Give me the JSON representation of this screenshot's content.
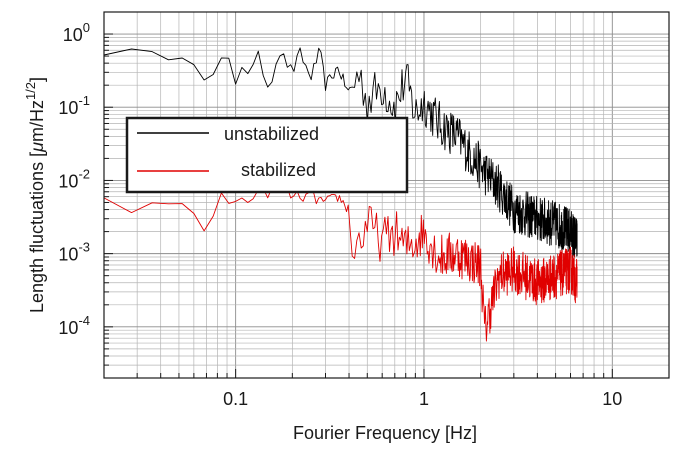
{
  "chart_data": {
    "type": "line",
    "title": "",
    "xlabel": "Fourier Frequency [Hz]",
    "ylabel_parts": [
      "Length fluctuations [",
      "μ",
      "m/Hz",
      "1/2",
      "]"
    ],
    "x_scale": "log",
    "y_scale": "log",
    "xlim": [
      0.02,
      20
    ],
    "ylim": [
      2e-05,
      2
    ],
    "grid": true,
    "legend_position": "upper-left, inside plot",
    "x_ticks": [
      {
        "value": 0.1,
        "label": "0.1"
      },
      {
        "value": 1,
        "label": "1"
      },
      {
        "value": 10,
        "label": "10"
      }
    ],
    "y_ticks": [
      {
        "value": 1,
        "base": "10",
        "exp": "0"
      },
      {
        "value": 0.1,
        "base": "10",
        "exp": "-1"
      },
      {
        "value": 0.01,
        "base": "10",
        "exp": "-2"
      },
      {
        "value": 0.001,
        "base": "10",
        "exp": "-3"
      },
      {
        "value": 0.0001,
        "base": "10",
        "exp": "-4"
      }
    ],
    "series": [
      {
        "name": "unstabilized",
        "color": "#000000",
        "points": [
          [
            0.02,
            0.6
          ],
          [
            0.025,
            0.65
          ],
          [
            0.03,
            0.5
          ],
          [
            0.04,
            0.48
          ],
          [
            0.05,
            0.6
          ],
          [
            0.06,
            0.45
          ],
          [
            0.07,
            0.18
          ],
          [
            0.08,
            0.35
          ],
          [
            0.09,
            0.5
          ],
          [
            0.1,
            0.22
          ],
          [
            0.11,
            0.45
          ],
          [
            0.12,
            0.25
          ],
          [
            0.13,
            0.55
          ],
          [
            0.15,
            0.18
          ],
          [
            0.17,
            0.6
          ],
          [
            0.2,
            0.3
          ],
          [
            0.22,
            0.55
          ],
          [
            0.25,
            0.25
          ],
          [
            0.28,
            0.6
          ],
          [
            0.3,
            0.2
          ],
          [
            0.35,
            0.35
          ],
          [
            0.4,
            0.15
          ],
          [
            0.45,
            0.3
          ],
          [
            0.5,
            0.12
          ],
          [
            0.6,
            0.2
          ],
          [
            0.7,
            0.1
          ],
          [
            0.8,
            0.25
          ],
          [
            0.9,
            0.08
          ],
          [
            1,
            0.12
          ],
          [
            1.2,
            0.06
          ],
          [
            1.5,
            0.04
          ],
          [
            2,
            0.015
          ],
          [
            2.5,
            0.008
          ],
          [
            3,
            0.004
          ],
          [
            4,
            0.003
          ],
          [
            5,
            0.0025
          ],
          [
            6,
            0.002
          ],
          [
            6.5,
            0.0015
          ]
        ]
      },
      {
        "name": "stabilized",
        "color": "#e00000",
        "points": [
          [
            0.02,
            0.005
          ],
          [
            0.025,
            0.004
          ],
          [
            0.03,
            0.004
          ],
          [
            0.04,
            0.005
          ],
          [
            0.05,
            0.005
          ],
          [
            0.06,
            0.004
          ],
          [
            0.07,
            0.0015
          ],
          [
            0.08,
            0.006
          ],
          [
            0.1,
            0.005
          ],
          [
            0.12,
            0.006
          ],
          [
            0.15,
            0.007
          ],
          [
            0.18,
            0.008
          ],
          [
            0.2,
            0.006
          ],
          [
            0.25,
            0.006
          ],
          [
            0.3,
            0.005
          ],
          [
            0.35,
            0.006
          ],
          [
            0.4,
            0.004
          ],
          [
            0.42,
            0.001
          ],
          [
            0.5,
            0.0025
          ],
          [
            0.6,
            0.0015
          ],
          [
            0.7,
            0.002
          ],
          [
            0.8,
            0.0012
          ],
          [
            0.9,
            0.0015
          ],
          [
            1,
            0.002
          ],
          [
            1.2,
            0.0009
          ],
          [
            1.5,
            0.001
          ],
          [
            2,
            0.0007
          ],
          [
            2.1,
            9e-05
          ],
          [
            2.5,
            0.0005
          ],
          [
            3,
            0.0006
          ],
          [
            4,
            0.0004
          ],
          [
            5,
            0.0005
          ],
          [
            6,
            0.0006
          ],
          [
            6.5,
            0.0004
          ]
        ]
      }
    ]
  }
}
